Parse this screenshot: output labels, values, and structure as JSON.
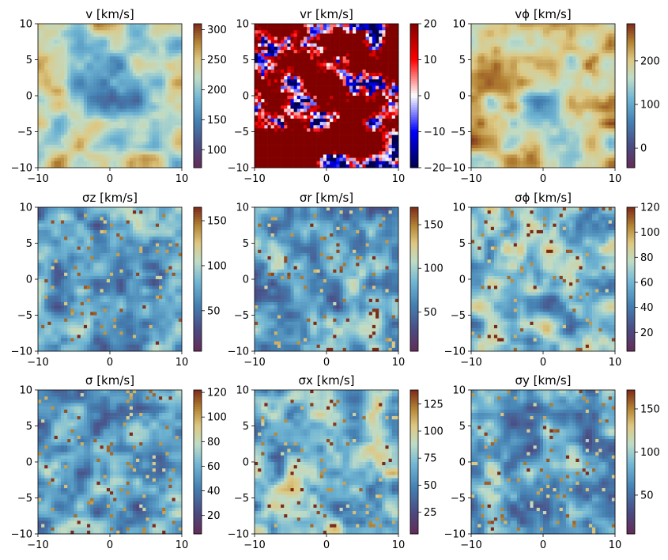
{
  "chart_data": [
    {
      "type": "heatmap",
      "title": "v [km/s]",
      "xlim": [
        -10,
        10
      ],
      "ylim": [
        -10,
        10
      ],
      "xticks": [
        "−10",
        "0",
        "10"
      ],
      "yticks": [
        "10",
        "5",
        "0",
        "−5",
        "−10"
      ],
      "colormap": "roma_r",
      "clim": [
        70,
        310
      ],
      "cbar_ticks": [
        100,
        150,
        200,
        250,
        300
      ],
      "cbar_labels": [
        "100",
        "150",
        "200",
        "250",
        "300"
      ],
      "pattern": "smooth"
    },
    {
      "type": "heatmap",
      "title": "vr [km/s]",
      "xlim": [
        -10,
        10
      ],
      "ylim": [
        -10,
        10
      ],
      "xticks": [
        "−10",
        "0",
        "10"
      ],
      "yticks": [
        "10",
        "5",
        "0",
        "−5",
        "−10"
      ],
      "colormap": "seismic",
      "clim": [
        -20,
        20
      ],
      "cbar_ticks": [
        -20,
        -10,
        0,
        10,
        20
      ],
      "cbar_labels": [
        "−20",
        "−10",
        "0",
        "10",
        "20"
      ],
      "pattern": "saturated"
    },
    {
      "type": "heatmap",
      "title": "vϕ [km/s]",
      "xlim": [
        -10,
        10
      ],
      "ylim": [
        -10,
        10
      ],
      "xticks": [
        "−10",
        "0",
        "10"
      ],
      "yticks": [
        "10",
        "5",
        "0",
        "−5",
        "−10"
      ],
      "colormap": "roma_r",
      "clim": [
        -45,
        285
      ],
      "cbar_ticks": [
        0,
        100,
        200
      ],
      "cbar_labels": [
        "0",
        "100",
        "200"
      ],
      "pattern": "smooth-high"
    },
    {
      "type": "heatmap",
      "title": "σz [km/s]",
      "xlim": [
        -10,
        10
      ],
      "ylim": [
        -10,
        10
      ],
      "xticks": [
        "−10",
        "0",
        "10"
      ],
      "yticks": [
        "10",
        "5",
        "0",
        "−5",
        "−10"
      ],
      "colormap": "roma_r",
      "clim": [
        5,
        165
      ],
      "cbar_ticks": [
        50,
        100,
        150
      ],
      "cbar_labels": [
        "50",
        "100",
        "150"
      ],
      "pattern": "noisy"
    },
    {
      "type": "heatmap",
      "title": "σr [km/s]",
      "xlim": [
        -10,
        10
      ],
      "ylim": [
        -10,
        10
      ],
      "xticks": [
        "−10",
        "0",
        "10"
      ],
      "yticks": [
        "10",
        "5",
        "0",
        "−5",
        "−10"
      ],
      "colormap": "roma_r",
      "clim": [
        5,
        170
      ],
      "cbar_ticks": [
        50,
        100,
        150
      ],
      "cbar_labels": [
        "50",
        "100",
        "150"
      ],
      "pattern": "noisy"
    },
    {
      "type": "heatmap",
      "title": "σϕ [km/s]",
      "xlim": [
        -10,
        10
      ],
      "ylim": [
        -10,
        10
      ],
      "xticks": [
        "−10",
        "0",
        "10"
      ],
      "yticks": [
        "10",
        "5",
        "0",
        "−5",
        "−10"
      ],
      "colormap": "roma_r",
      "clim": [
        5,
        120
      ],
      "cbar_ticks": [
        20,
        40,
        60,
        80,
        100,
        120
      ],
      "cbar_labels": [
        "20",
        "40",
        "60",
        "80",
        "100",
        "120"
      ],
      "pattern": "noisy-high"
    },
    {
      "type": "heatmap",
      "title": "σ [km/s]",
      "xlim": [
        -10,
        10
      ],
      "ylim": [
        -10,
        10
      ],
      "xticks": [
        "−10",
        "0",
        "10"
      ],
      "yticks": [
        "10",
        "5",
        "0",
        "−5",
        "−10"
      ],
      "colormap": "roma_r",
      "clim": [
        5,
        122
      ],
      "cbar_ticks": [
        20,
        40,
        60,
        80,
        100,
        120
      ],
      "cbar_labels": [
        "20",
        "40",
        "60",
        "80",
        "100",
        "120"
      ],
      "pattern": "noisy"
    },
    {
      "type": "heatmap",
      "title": "σx [km/s]",
      "xlim": [
        -10,
        10
      ],
      "ylim": [
        -10,
        10
      ],
      "xticks": [
        "−10",
        "0",
        "10"
      ],
      "yticks": [
        "10",
        "5",
        "0",
        "−5",
        "−10"
      ],
      "colormap": "roma_r",
      "clim": [
        5,
        138
      ],
      "cbar_ticks": [
        25,
        50,
        75,
        100,
        125
      ],
      "cbar_labels": [
        "25",
        "50",
        "75",
        "100",
        "125"
      ],
      "pattern": "noisy-high"
    },
    {
      "type": "heatmap",
      "title": "σy [km/s]",
      "xlim": [
        -10,
        10
      ],
      "ylim": [
        -10,
        10
      ],
      "xticks": [
        "−10",
        "0",
        "10"
      ],
      "yticks": [
        "10",
        "5",
        "0",
        "−5",
        "−10"
      ],
      "colormap": "roma_r",
      "clim": [
        5,
        172
      ],
      "cbar_ticks": [
        50,
        100,
        150
      ],
      "cbar_labels": [
        "50",
        "100",
        "150"
      ],
      "pattern": "noisy"
    }
  ]
}
